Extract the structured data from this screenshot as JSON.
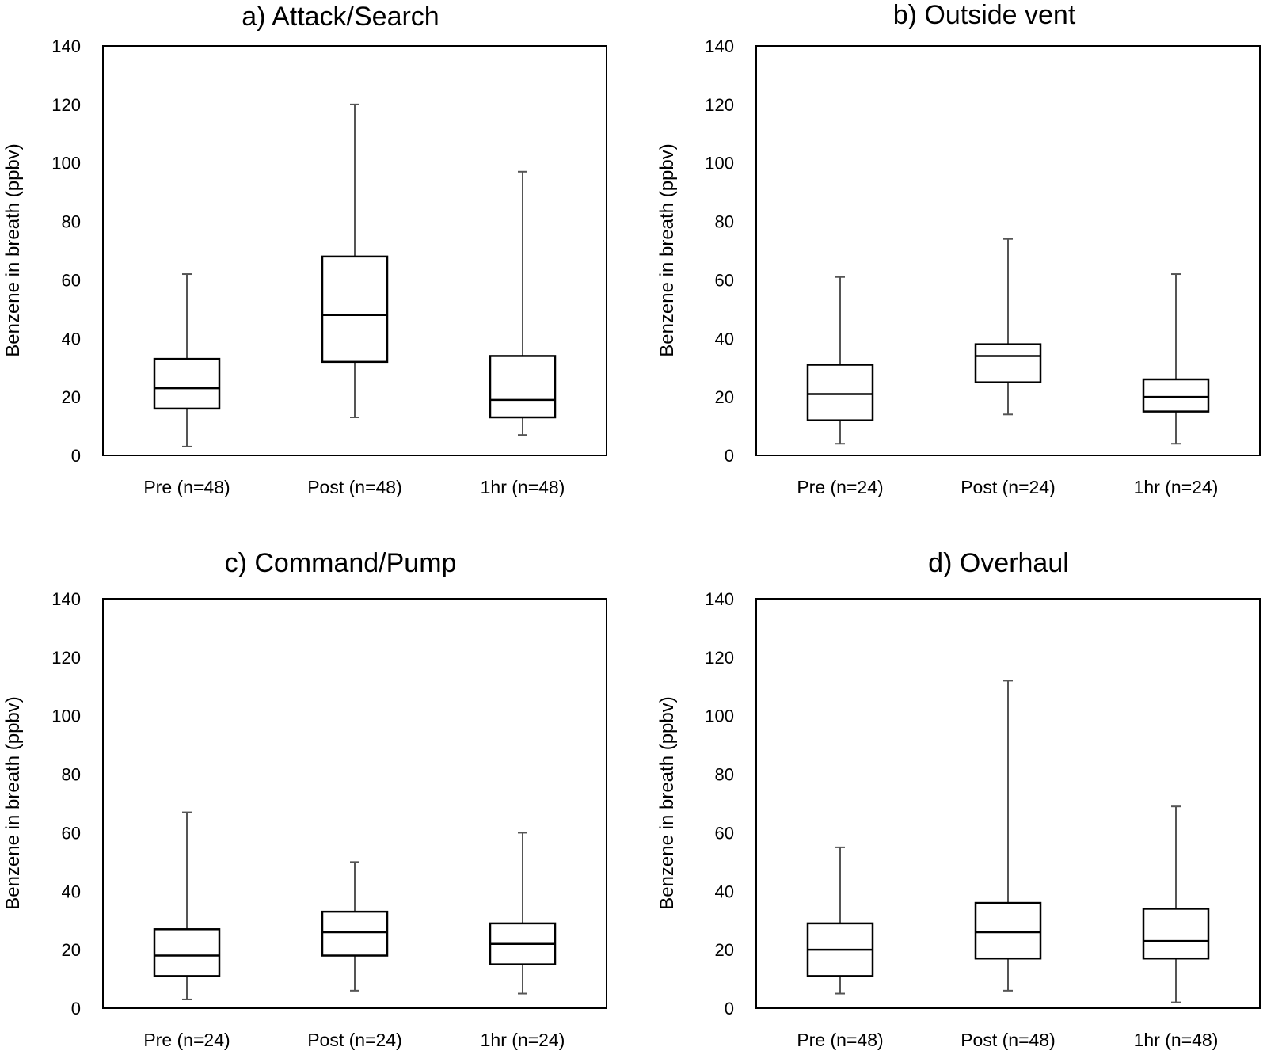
{
  "chart_data": [
    {
      "type": "box",
      "title": "a) Attack/Search",
      "ylabel": "Benzene in breath (ppbv)",
      "ylim": [
        0,
        140
      ],
      "yticks": [
        0,
        20,
        40,
        60,
        80,
        100,
        120,
        140
      ],
      "categories": [
        "Pre (n=48)",
        "Post (n=48)",
        "1hr (n=48)"
      ],
      "boxes": [
        {
          "min": 3,
          "q1": 16,
          "median": 23,
          "q3": 33,
          "max": 62
        },
        {
          "min": 13,
          "q1": 32,
          "median": 48,
          "q3": 68,
          "max": 120
        },
        {
          "min": 7,
          "q1": 13,
          "median": 19,
          "q3": 34,
          "max": 97
        }
      ]
    },
    {
      "type": "box",
      "title": "b) Outside vent",
      "ylabel": "Benzene in breath (ppbv)",
      "ylim": [
        0,
        140
      ],
      "yticks": [
        0,
        20,
        40,
        60,
        80,
        100,
        120,
        140
      ],
      "categories": [
        "Pre (n=24)",
        "Post (n=24)",
        "1hr (n=24)"
      ],
      "boxes": [
        {
          "min": 4,
          "q1": 12,
          "median": 21,
          "q3": 31,
          "max": 61
        },
        {
          "min": 14,
          "q1": 25,
          "median": 34,
          "q3": 38,
          "max": 74
        },
        {
          "min": 4,
          "q1": 15,
          "median": 20,
          "q3": 26,
          "max": 62
        }
      ]
    },
    {
      "type": "box",
      "title": "c) Command/Pump",
      "ylabel": "Benzene in breath (ppbv)",
      "ylim": [
        0,
        140
      ],
      "yticks": [
        0,
        20,
        40,
        60,
        80,
        100,
        120,
        140
      ],
      "categories": [
        "Pre (n=24)",
        "Post (n=24)",
        "1hr (n=24)"
      ],
      "boxes": [
        {
          "min": 3,
          "q1": 11,
          "median": 18,
          "q3": 27,
          "max": 67
        },
        {
          "min": 6,
          "q1": 18,
          "median": 26,
          "q3": 33,
          "max": 50
        },
        {
          "min": 5,
          "q1": 15,
          "median": 22,
          "q3": 29,
          "max": 60
        }
      ]
    },
    {
      "type": "box",
      "title": "d) Overhaul",
      "ylabel": "Benzene in breath (ppbv)",
      "ylim": [
        0,
        140
      ],
      "yticks": [
        0,
        20,
        40,
        60,
        80,
        100,
        120,
        140
      ],
      "categories": [
        "Pre (n=48)",
        "Post (n=48)",
        "1hr (n=48)"
      ],
      "boxes": [
        {
          "min": 5,
          "q1": 11,
          "median": 20,
          "q3": 29,
          "max": 55
        },
        {
          "min": 6,
          "q1": 17,
          "median": 26,
          "q3": 36,
          "max": 112
        },
        {
          "min": 2,
          "q1": 17,
          "median": 23,
          "q3": 34,
          "max": 69
        }
      ]
    }
  ]
}
